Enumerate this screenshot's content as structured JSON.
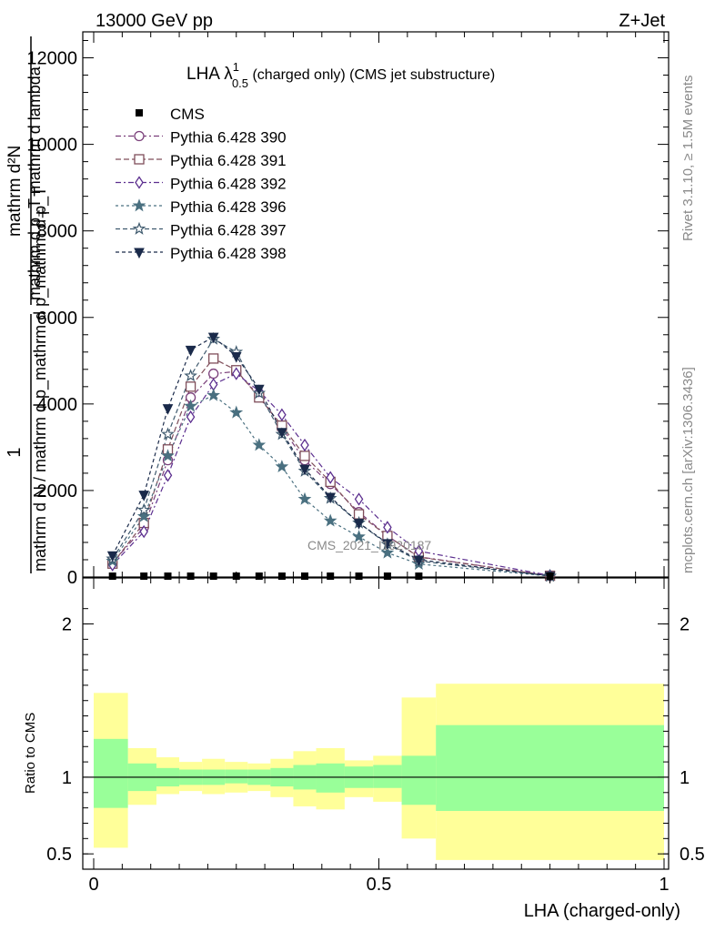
{
  "header": {
    "energy_label": "13000 GeV pp",
    "process_label": "Z+Jet",
    "watermark": "CMS_2021_I1920187",
    "side_rivet": "Rivet 3.1.10, ≥ 1.5M events",
    "side_mcplots": "mcplots.cern.ch [arXiv:1306.3436]"
  },
  "chart_data": [
    {
      "type": "line",
      "title": {
        "prefix": "LHA λ",
        "sup": "1",
        "sub": "0.5",
        "suffix": " (charged only) (CMS jet substructure)"
      },
      "ylabel": {
        "numerator": "1",
        "denominator": "mathrm d N / mathrm d p_mathrm d p_mathrm d p_T",
        "right_num": "mathrm d²N",
        "right_den": "mathrm d p_T mathrm d lambda",
        "sub_T": "T"
      },
      "x": [
        0.033,
        0.088,
        0.13,
        0.17,
        0.21,
        0.25,
        0.29,
        0.33,
        0.37,
        0.415,
        0.465,
        0.515,
        0.57,
        0.8
      ],
      "ylim": [
        0,
        12600
      ],
      "yticks": [
        {
          "v": 0,
          "label": "0"
        },
        {
          "v": 2000,
          "label": "2000"
        },
        {
          "v": 4000,
          "label": "4000"
        },
        {
          "v": 6000,
          "label": "6000"
        },
        {
          "v": 8000,
          "label": "8000"
        },
        {
          "v": 10000,
          "label": "10000"
        },
        {
          "v": 12000,
          "label": "12000"
        }
      ],
      "cms": {
        "name": "CMS",
        "values": [
          0,
          0,
          0,
          0,
          0,
          0,
          0,
          0,
          0,
          0,
          0,
          0,
          0,
          0
        ]
      },
      "series": [
        {
          "name": "Pythia 6.428 390",
          "color": "#7a3f7a",
          "marker": "circle-open",
          "dash": "6,3,2,3",
          "values": [
            330,
            1150,
            2700,
            4150,
            4700,
            4750,
            4200,
            3450,
            2700,
            2150,
            1500,
            950,
            470,
            30
          ]
        },
        {
          "name": "Pythia 6.428 391",
          "color": "#7f4e5a",
          "marker": "square-open",
          "dash": "6,3",
          "values": [
            310,
            1250,
            2950,
            4400,
            5050,
            4780,
            4150,
            3500,
            2800,
            2200,
            1450,
            950,
            460,
            30
          ]
        },
        {
          "name": "Pythia 6.428 392",
          "color": "#5c2f8f",
          "marker": "diamond-open",
          "dash": "6,3,2,3",
          "values": [
            280,
            1050,
            2350,
            3700,
            4450,
            4700,
            4300,
            3750,
            3050,
            2300,
            1800,
            1150,
            600,
            35
          ]
        },
        {
          "name": "Pythia 6.428 396",
          "color": "#4a7080",
          "marker": "star",
          "dash": "3,3",
          "values": [
            370,
            1400,
            2800,
            3950,
            4200,
            3800,
            3050,
            2550,
            1800,
            1300,
            930,
            560,
            300,
            20
          ]
        },
        {
          "name": "Pythia 6.428 397",
          "color": "#3f5a6e",
          "marker": "star-open",
          "dash": "5,3",
          "values": [
            420,
            1550,
            3300,
            4650,
            5500,
            5200,
            4250,
            3300,
            2450,
            1820,
            1250,
            760,
            370,
            25
          ]
        },
        {
          "name": "Pythia 6.428 398",
          "color": "#1a2a4a",
          "marker": "triangle-down",
          "dash": "4,3",
          "values": [
            500,
            1900,
            3900,
            5250,
            5550,
            5100,
            4350,
            3350,
            2500,
            1850,
            1250,
            780,
            400,
            25
          ]
        }
      ]
    },
    {
      "type": "area",
      "ylabel": "Ratio to CMS",
      "xlabel": "LHA (charged-only)",
      "xlim": [
        0,
        1
      ],
      "ylim": [
        0.4,
        2.3
      ],
      "xticks": [
        {
          "v": 0,
          "label": "0"
        },
        {
          "v": 0.5,
          "label": "0.5"
        },
        {
          "v": 1,
          "label": "1"
        }
      ],
      "yticks": [
        {
          "v": 0.5,
          "label": "0.5"
        },
        {
          "v": 1,
          "label": "1"
        },
        {
          "v": 2,
          "label": "2"
        }
      ],
      "bins": [
        {
          "x0": 0.0,
          "x1": 0.06,
          "stat_lo": 0.8,
          "stat_hi": 1.25,
          "tot_lo": 0.54,
          "tot_hi": 1.55
        },
        {
          "x0": 0.06,
          "x1": 0.11,
          "stat_lo": 0.91,
          "stat_hi": 1.09,
          "tot_lo": 0.82,
          "tot_hi": 1.19
        },
        {
          "x0": 0.11,
          "x1": 0.15,
          "stat_lo": 0.94,
          "stat_hi": 1.06,
          "tot_lo": 0.89,
          "tot_hi": 1.13
        },
        {
          "x0": 0.15,
          "x1": 0.19,
          "stat_lo": 0.95,
          "stat_hi": 1.05,
          "tot_lo": 0.91,
          "tot_hi": 1.1
        },
        {
          "x0": 0.19,
          "x1": 0.23,
          "stat_lo": 0.95,
          "stat_hi": 1.05,
          "tot_lo": 0.89,
          "tot_hi": 1.12
        },
        {
          "x0": 0.23,
          "x1": 0.27,
          "stat_lo": 0.96,
          "stat_hi": 1.05,
          "tot_lo": 0.9,
          "tot_hi": 1.1
        },
        {
          "x0": 0.27,
          "x1": 0.31,
          "stat_lo": 0.95,
          "stat_hi": 1.05,
          "tot_lo": 0.91,
          "tot_hi": 1.09
        },
        {
          "x0": 0.31,
          "x1": 0.35,
          "stat_lo": 0.94,
          "stat_hi": 1.06,
          "tot_lo": 0.87,
          "tot_hi": 1.12
        },
        {
          "x0": 0.35,
          "x1": 0.39,
          "stat_lo": 0.92,
          "stat_hi": 1.08,
          "tot_lo": 0.81,
          "tot_hi": 1.17
        },
        {
          "x0": 0.39,
          "x1": 0.44,
          "stat_lo": 0.9,
          "stat_hi": 1.09,
          "tot_lo": 0.79,
          "tot_hi": 1.19
        },
        {
          "x0": 0.44,
          "x1": 0.49,
          "stat_lo": 0.93,
          "stat_hi": 1.07,
          "tot_lo": 0.87,
          "tot_hi": 1.11
        },
        {
          "x0": 0.49,
          "x1": 0.54,
          "stat_lo": 0.93,
          "stat_hi": 1.08,
          "tot_lo": 0.84,
          "tot_hi": 1.14
        },
        {
          "x0": 0.54,
          "x1": 0.6,
          "stat_lo": 0.82,
          "stat_hi": 1.14,
          "tot_lo": 0.6,
          "tot_hi": 1.52
        },
        {
          "x0": 0.6,
          "x1": 1.0,
          "stat_lo": 0.78,
          "stat_hi": 1.34,
          "tot_lo": 0.46,
          "tot_hi": 1.61
        }
      ],
      "colors": {
        "stat": "#99ff99",
        "total": "#ffff99"
      }
    }
  ]
}
